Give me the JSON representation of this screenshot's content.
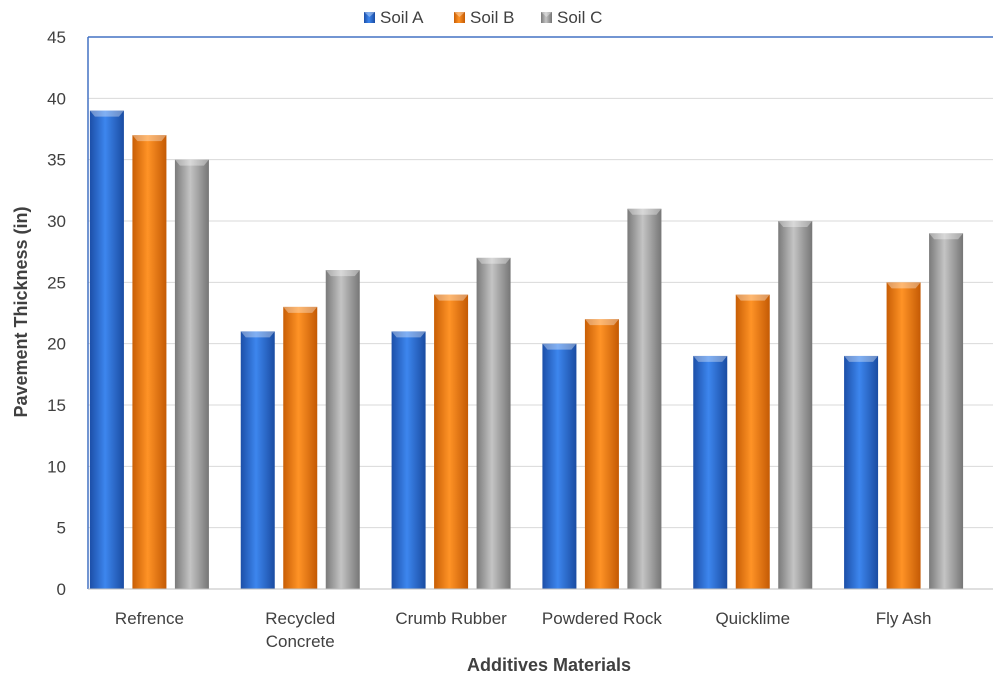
{
  "chart_data": {
    "type": "bar",
    "title": "",
    "xlabel": "Additives Materials",
    "ylabel": "Pavement Thickness (in)",
    "categories": [
      [
        "Refrence"
      ],
      [
        "Recycled",
        "Concrete"
      ],
      [
        "Crumb Rubber"
      ],
      [
        "Powdered Rock"
      ],
      [
        "Quicklime"
      ],
      [
        "Fly Ash"
      ]
    ],
    "series": [
      {
        "name": "Soil A",
        "values": [
          39,
          21,
          21,
          20,
          19,
          19
        ],
        "color": "#2e6fd6"
      },
      {
        "name": "Soil B",
        "values": [
          37,
          23,
          24,
          22,
          24,
          25
        ],
        "color": "#f07c12"
      },
      {
        "name": "Soil C",
        "values": [
          35,
          26,
          27,
          31,
          30,
          29
        ],
        "color": "#9a9a9a"
      }
    ],
    "ylim": [
      0,
      45
    ],
    "yticks": [
      0,
      5,
      10,
      15,
      20,
      25,
      30,
      35,
      40,
      45
    ],
    "grid": true,
    "legend_position": "top-center"
  }
}
